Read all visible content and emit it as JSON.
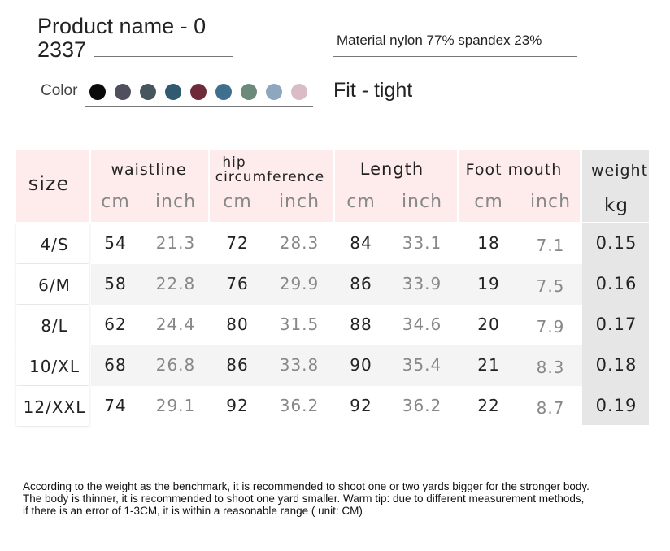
{
  "header": {
    "title_line1": "Product name - 0",
    "title_line2": "2337",
    "material": "Material nylon 77% spandex 23%",
    "color_label": "Color",
    "fit": "Fit - tight",
    "colors": [
      "#0a0a0a",
      "#4f4f5e",
      "#47565c",
      "#2f5a70",
      "#6e2a38",
      "#3f6f8e",
      "#6c8a7a",
      "#8fa6bf",
      "#d9bcc5"
    ]
  },
  "table": {
    "size_header": "size",
    "groups": [
      "waistline",
      "hip circumference",
      "Length",
      "Foot mouth"
    ],
    "hip_line1": "hip",
    "hip_line2": "circumference",
    "unit_cm": "cm",
    "unit_inch": "inch",
    "weight_header": "weight",
    "weight_unit": "kg",
    "rows": [
      [
        "4/S",
        "54",
        "21.3",
        "72",
        "28.3",
        "84",
        "33.1",
        "18",
        "7.1",
        "0.15"
      ],
      [
        "6/M",
        "58",
        "22.8",
        "76",
        "29.9",
        "86",
        "33.9",
        "19",
        "7.5",
        "0.16"
      ],
      [
        "8/L",
        "62",
        "24.4",
        "80",
        "31.5",
        "88",
        "34.6",
        "20",
        "7.9",
        "0.17"
      ],
      [
        "10/XL",
        "68",
        "26.8",
        "86",
        "33.8",
        "90",
        "35.4",
        "21",
        "8.3",
        "0.18"
      ],
      [
        "12/XXL",
        "74",
        "29.1",
        "92",
        "36.2",
        "92",
        "36.2",
        "22",
        "8.7",
        "0.19"
      ]
    ]
  },
  "note": "According to the weight as the benchmark, it is recommended to shoot one or two yards bigger for the stronger body. The body is thinner, it is recommended to shoot one yard smaller. Warm tip: due to different measurement methods, if there is an error of 1-3CM, it is within a reasonable range ( unit: CM)"
}
